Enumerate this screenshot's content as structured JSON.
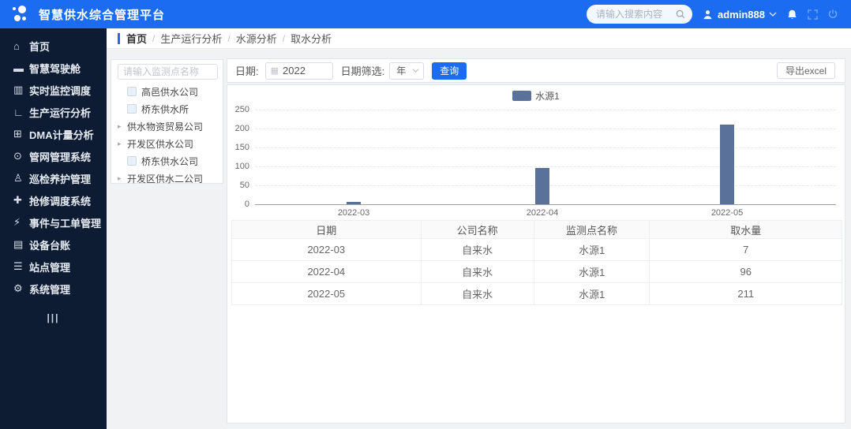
{
  "app": {
    "title": "智慧供水综合管理平台"
  },
  "colors": {
    "accent": "#1b6cf0",
    "sidebar_bg": "#0d1c33",
    "bar_color": "#5a7299"
  },
  "topbar": {
    "search_placeholder": "请输入搜索内容",
    "username": "admin888"
  },
  "breadcrumb": {
    "separator": "/",
    "items": [
      "首页",
      "生产运行分析",
      "水源分析",
      "取水分析"
    ]
  },
  "sidebar": {
    "items": [
      {
        "name": "home",
        "glyph": "⌂",
        "label": "首页"
      },
      {
        "name": "smart-cockpit",
        "glyph": "▬",
        "label": "智慧驾驶舱"
      },
      {
        "name": "realtime-monitor",
        "glyph": "▥",
        "label": "实时监控调度"
      },
      {
        "name": "production-analysis",
        "glyph": "∟",
        "label": "生产运行分析"
      },
      {
        "name": "dma-metering",
        "glyph": "⊞",
        "label": "DMA计量分析"
      },
      {
        "name": "pipe-network",
        "glyph": "⊙",
        "label": "管网管理系统"
      },
      {
        "name": "inspection",
        "glyph": "♙",
        "label": "巡检养护管理"
      },
      {
        "name": "repair-dispatch",
        "glyph": "✚",
        "label": "抢修调度系统"
      },
      {
        "name": "event-workorder",
        "glyph": "⚡",
        "label": "事件与工单管理"
      },
      {
        "name": "device-ledger",
        "glyph": "▤",
        "label": "设备台账"
      },
      {
        "name": "site-management",
        "glyph": "☰",
        "label": "站点管理"
      },
      {
        "name": "system-management",
        "glyph": "⚙",
        "label": "系统管理"
      }
    ],
    "collapse_glyph": "|||"
  },
  "tree": {
    "search_placeholder": "请输入监测点名称",
    "items": [
      {
        "label": "高邑供水公司",
        "type": "checkbox"
      },
      {
        "label": "桥东供水所",
        "type": "checkbox"
      },
      {
        "label": "供水物资贸易公司",
        "type": "branch"
      },
      {
        "label": "开发区供水公司",
        "type": "branch"
      },
      {
        "label": "桥东供水公司",
        "type": "checkbox"
      },
      {
        "label": "开发区供水二公司",
        "type": "branch"
      }
    ]
  },
  "toolbar": {
    "date_label": "日期:",
    "date_value": "2022",
    "filter_label": "日期筛选:",
    "filter_value": "年",
    "query_label": "查询",
    "export_label": "导出excel"
  },
  "chart_data": {
    "type": "bar",
    "categories": [
      "2022-03",
      "2022-04",
      "2022-05"
    ],
    "series": [
      {
        "name": "水源1",
        "values": [
          7,
          96,
          211
        ]
      }
    ],
    "title": "",
    "xlabel": "",
    "ylabel": "",
    "ylim": [
      0,
      250
    ],
    "yticks": [
      0,
      50,
      100,
      150,
      200,
      250
    ],
    "grid": true,
    "legend_position": "top",
    "bar_color": "#5a7299"
  },
  "table": {
    "headers": [
      "日期",
      "公司名称",
      "监测点名称",
      "取水量"
    ],
    "rows": [
      [
        "2022-03",
        "自来水",
        "水源1",
        "7"
      ],
      [
        "2022-04",
        "自来水",
        "水源1",
        "96"
      ],
      [
        "2022-05",
        "自来水",
        "水源1",
        "211"
      ]
    ]
  }
}
